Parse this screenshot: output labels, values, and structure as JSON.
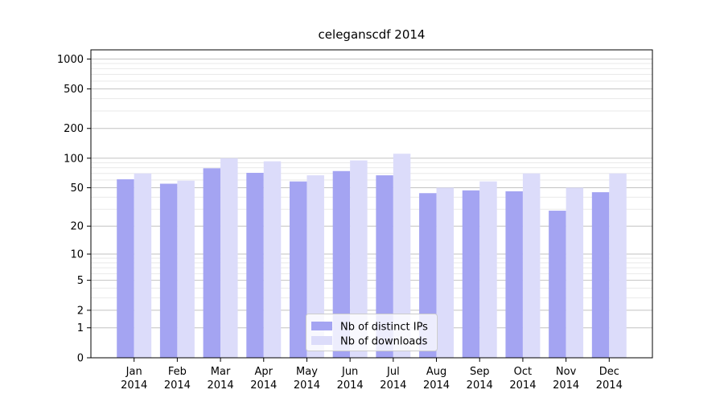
{
  "chart_data": {
    "type": "bar",
    "title": "celeganscdf 2014",
    "x_year": "2014",
    "categories": [
      "Jan",
      "Feb",
      "Mar",
      "Apr",
      "May",
      "Jun",
      "Jul",
      "Aug",
      "Sep",
      "Oct",
      "Nov",
      "Dec"
    ],
    "series": [
      {
        "name": "Nb of distinct IPs",
        "color": "#a4a4f2",
        "values": [
          61,
          55,
          79,
          71,
          58,
          74,
          67,
          44,
          47,
          46,
          29,
          45
        ]
      },
      {
        "name": "Nb of downloads",
        "color": "#dcdcfa",
        "values": [
          70,
          59,
          100,
          93,
          67,
          95,
          111,
          50,
          58,
          70,
          50,
          70
        ]
      }
    ],
    "y_scale": "log1p",
    "y_tick_values": [
      0,
      1,
      2,
      5,
      10,
      20,
      50,
      100,
      200,
      500,
      1000
    ],
    "y_tick_labels": [
      "0",
      "1",
      "2",
      "5",
      "10",
      "20",
      "50",
      "100",
      "200",
      "500",
      "1000"
    ],
    "y_minor_tick_values": [
      3,
      4,
      6,
      7,
      8,
      9,
      30,
      40,
      60,
      70,
      80,
      90,
      300,
      400,
      600,
      700,
      800,
      900
    ],
    "y_max": 1236,
    "grid": true,
    "legend_position": "lower center",
    "colors": {
      "major_grid": "#c2c2c2",
      "minor_grid": "#e9e9e9",
      "spine": "#000000",
      "legend_border": "#cccccc"
    }
  }
}
